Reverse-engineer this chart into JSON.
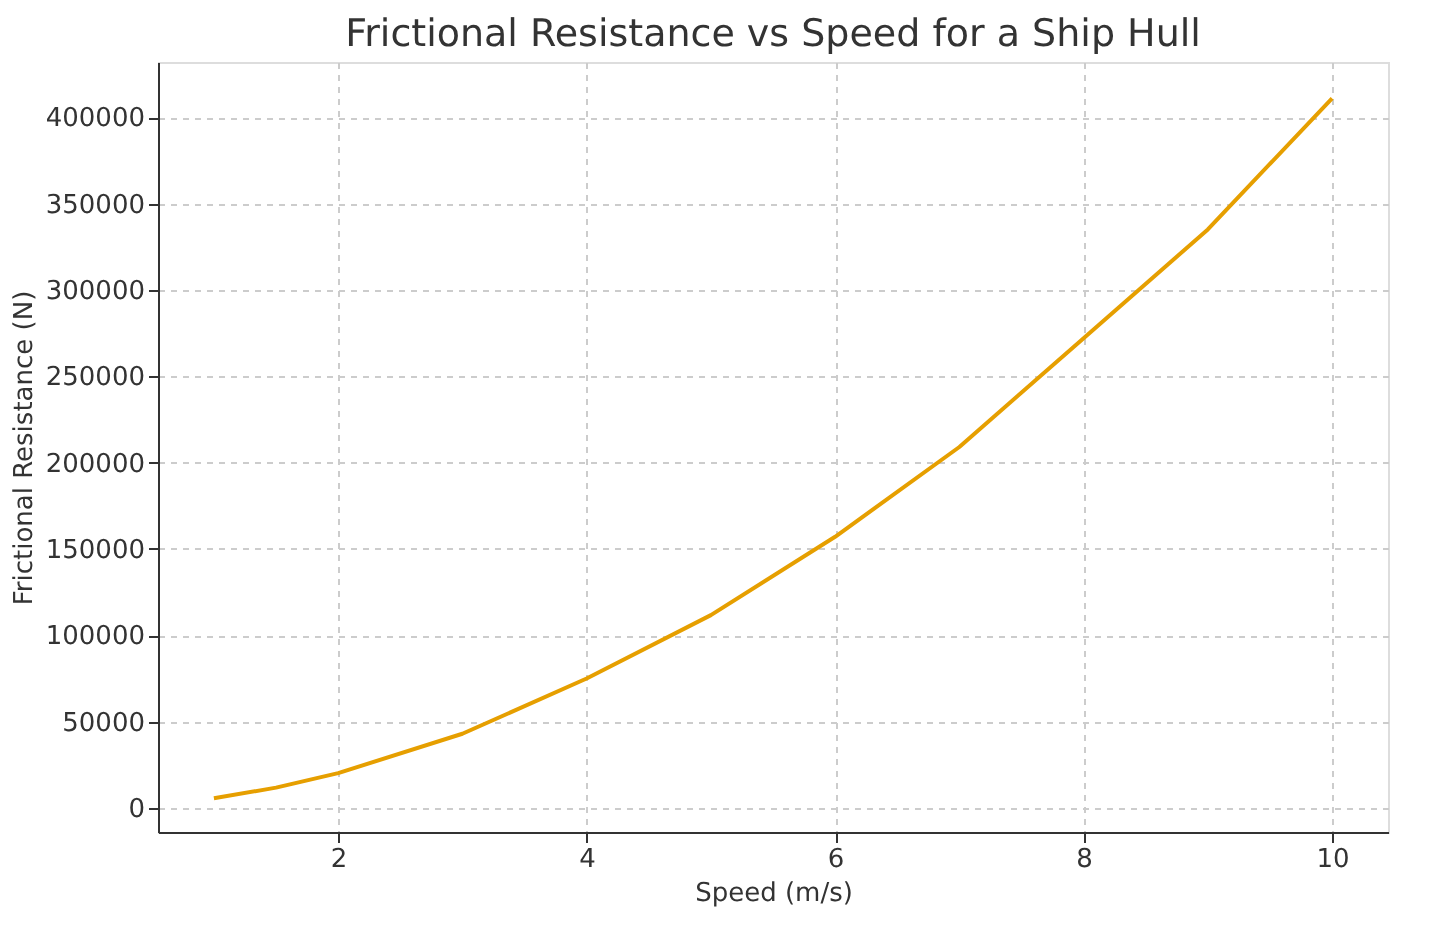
{
  "chart_data": {
    "type": "line",
    "title": "Frictional Resistance vs Speed for a Ship Hull",
    "xlabel": "Speed (m/s)",
    "ylabel": "Frictional Resistance (N)",
    "x": [
      1,
      1.5,
      2,
      3,
      4,
      5,
      6,
      7,
      8,
      9,
      10
    ],
    "series": [
      {
        "color": "#e69f00",
        "values": [
          5500,
          11700,
          20100,
          42900,
          74900,
          111600,
          157000,
          209000,
          272000,
          335000,
          411000
        ]
      }
    ],
    "xlim": [
      0.55,
      10.45
    ],
    "ylim": [
      -14000,
      432000
    ],
    "xticks": [
      2,
      4,
      6,
      8,
      10
    ],
    "yticks": [
      0,
      50000,
      100000,
      150000,
      200000,
      250000,
      300000,
      350000,
      400000
    ],
    "grid": true,
    "line_style": "solid",
    "marker": "none"
  }
}
